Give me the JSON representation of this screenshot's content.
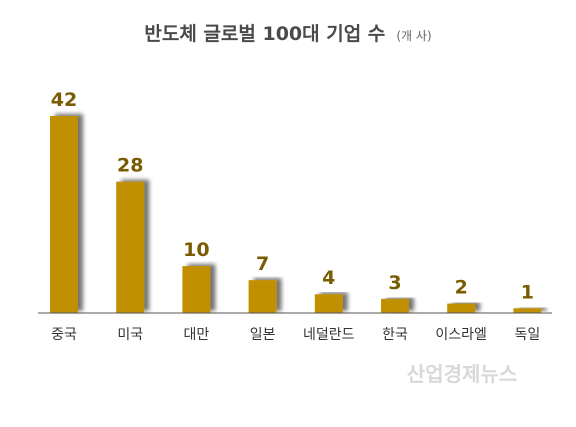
{
  "chart_data": {
    "type": "bar",
    "title": "반도체 글로벌 100대 기업 수",
    "unit": "(개 사)",
    "categories": [
      "중국",
      "미국",
      "대만",
      "일본",
      "네덜란드",
      "한국",
      "이스라엘",
      "독일"
    ],
    "values": [
      42,
      28,
      10,
      7,
      4,
      3,
      2,
      1
    ],
    "ylim": [
      0,
      45
    ],
    "grid": false,
    "legend": "none",
    "bar_color": "#C09000",
    "label_color": "#7A5C00"
  },
  "watermark": "산업경제뉴스"
}
